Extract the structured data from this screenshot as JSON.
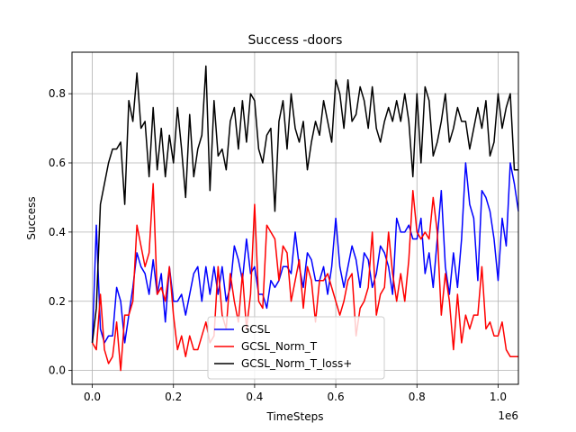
{
  "chart_data": {
    "type": "line",
    "title": "Success -doors",
    "xlabel": "TimeSteps",
    "ylabel": "Success",
    "x_offset_label": "1e6",
    "xlim": [
      -0.05,
      1.05
    ],
    "ylim": [
      -0.04,
      0.92
    ],
    "x_ticks": [
      0.0,
      0.2,
      0.4,
      0.6,
      0.8,
      1.0
    ],
    "x_tick_labels": [
      "0.0",
      "0.2",
      "0.4",
      "0.6",
      "0.8",
      "1.0"
    ],
    "y_ticks": [
      0.0,
      0.2,
      0.4,
      0.6,
      0.8
    ],
    "y_tick_labels": [
      "0.0",
      "0.2",
      "0.4",
      "0.6",
      "0.8"
    ],
    "grid": true,
    "legend_position": "lower-center",
    "x_start": 0.0,
    "x_step": 0.01,
    "series": [
      {
        "name": "GCSL",
        "color": "#0000ff",
        "values": [
          0.08,
          0.42,
          0.12,
          0.08,
          0.1,
          0.1,
          0.24,
          0.2,
          0.08,
          0.16,
          0.24,
          0.34,
          0.3,
          0.28,
          0.22,
          0.32,
          0.22,
          0.28,
          0.14,
          0.3,
          0.2,
          0.2,
          0.22,
          0.16,
          0.22,
          0.28,
          0.3,
          0.2,
          0.3,
          0.22,
          0.3,
          0.22,
          0.3,
          0.2,
          0.24,
          0.36,
          0.32,
          0.26,
          0.38,
          0.28,
          0.3,
          0.22,
          0.22,
          0.18,
          0.26,
          0.24,
          0.26,
          0.3,
          0.3,
          0.28,
          0.4,
          0.3,
          0.24,
          0.34,
          0.32,
          0.26,
          0.26,
          0.3,
          0.22,
          0.3,
          0.44,
          0.3,
          0.24,
          0.3,
          0.36,
          0.32,
          0.24,
          0.34,
          0.32,
          0.24,
          0.28,
          0.36,
          0.34,
          0.3,
          0.22,
          0.44,
          0.4,
          0.4,
          0.42,
          0.38,
          0.38,
          0.44,
          0.28,
          0.34,
          0.24,
          0.38,
          0.52,
          0.3,
          0.22,
          0.34,
          0.24,
          0.38,
          0.6,
          0.48,
          0.44,
          0.26,
          0.52,
          0.5,
          0.46,
          0.38,
          0.26,
          0.44,
          0.36,
          0.6,
          0.54,
          0.46
        ]
      },
      {
        "name": "GCSL_Norm_T",
        "color": "#ff0000",
        "values": [
          0.08,
          0.06,
          0.22,
          0.06,
          0.02,
          0.04,
          0.14,
          0.0,
          0.16,
          0.16,
          0.2,
          0.42,
          0.36,
          0.3,
          0.34,
          0.54,
          0.22,
          0.24,
          0.2,
          0.3,
          0.16,
          0.06,
          0.1,
          0.04,
          0.1,
          0.06,
          0.06,
          0.1,
          0.14,
          0.08,
          0.1,
          0.3,
          0.16,
          0.12,
          0.28,
          0.2,
          0.14,
          0.28,
          0.12,
          0.22,
          0.48,
          0.2,
          0.18,
          0.42,
          0.4,
          0.38,
          0.26,
          0.36,
          0.34,
          0.2,
          0.26,
          0.32,
          0.18,
          0.3,
          0.26,
          0.14,
          0.26,
          0.26,
          0.28,
          0.24,
          0.2,
          0.16,
          0.2,
          0.26,
          0.28,
          0.1,
          0.18,
          0.2,
          0.24,
          0.4,
          0.16,
          0.22,
          0.24,
          0.4,
          0.28,
          0.2,
          0.28,
          0.2,
          0.32,
          0.52,
          0.4,
          0.38,
          0.4,
          0.38,
          0.5,
          0.4,
          0.16,
          0.28,
          0.2,
          0.06,
          0.22,
          0.08,
          0.16,
          0.12,
          0.16,
          0.16,
          0.3,
          0.12,
          0.14,
          0.1,
          0.1,
          0.14,
          0.06,
          0.04,
          0.04,
          0.04
        ]
      },
      {
        "name": "GCSL_Norm_T_loss+",
        "color": "#000000",
        "values": [
          0.08,
          0.18,
          0.48,
          0.54,
          0.6,
          0.64,
          0.64,
          0.66,
          0.48,
          0.78,
          0.72,
          0.86,
          0.7,
          0.72,
          0.56,
          0.76,
          0.58,
          0.7,
          0.56,
          0.68,
          0.6,
          0.76,
          0.64,
          0.5,
          0.74,
          0.56,
          0.64,
          0.68,
          0.88,
          0.52,
          0.78,
          0.62,
          0.64,
          0.58,
          0.72,
          0.76,
          0.64,
          0.78,
          0.66,
          0.8,
          0.78,
          0.64,
          0.6,
          0.68,
          0.7,
          0.46,
          0.72,
          0.78,
          0.64,
          0.8,
          0.7,
          0.66,
          0.72,
          0.58,
          0.66,
          0.72,
          0.68,
          0.78,
          0.72,
          0.66,
          0.84,
          0.8,
          0.7,
          0.84,
          0.72,
          0.74,
          0.82,
          0.78,
          0.7,
          0.82,
          0.7,
          0.66,
          0.72,
          0.76,
          0.72,
          0.78,
          0.72,
          0.8,
          0.72,
          0.56,
          0.8,
          0.6,
          0.82,
          0.78,
          0.62,
          0.66,
          0.72,
          0.8,
          0.66,
          0.7,
          0.76,
          0.72,
          0.72,
          0.64,
          0.7,
          0.76,
          0.7,
          0.78,
          0.62,
          0.66,
          0.8,
          0.7,
          0.76,
          0.8,
          0.58,
          0.58
        ]
      }
    ]
  }
}
